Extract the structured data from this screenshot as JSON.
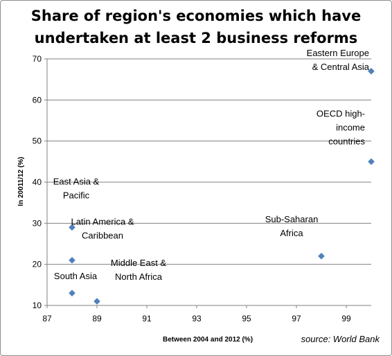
{
  "chart_data": {
    "type": "scatter",
    "title_lines": [
      "Share of region's economies which have",
      "undertaken at least 2 business reforms"
    ],
    "xlabel": "Between 2004 and 2012 (%)",
    "ylabel": "In 20011/12 (%)",
    "source": "source: World Bank",
    "xlim": [
      87,
      100
    ],
    "ylim": [
      10,
      70
    ],
    "x_ticks": [
      87,
      89,
      91,
      93,
      95,
      97,
      99
    ],
    "y_ticks": [
      10,
      20,
      30,
      40,
      50,
      60,
      70
    ],
    "grid": "horizontal",
    "marker_color": "#4f81bd",
    "points": [
      {
        "label_lines": [
          "Eastern Europe",
          "& Central Asia"
        ],
        "x": 100,
        "y": 67
      },
      {
        "label_lines": [
          "OECD high-",
          "income",
          "countries"
        ],
        "x": 100,
        "y": 45
      },
      {
        "label_lines": [
          "East Asia &",
          "Pacific"
        ],
        "x": 88,
        "y": 29
      },
      {
        "label_lines": [
          "Latin America &",
          "Caribbean"
        ],
        "x": 88,
        "y": 21
      },
      {
        "label_lines": [
          "Sub-Saharan",
          "Africa"
        ],
        "x": 98,
        "y": 22
      },
      {
        "label_lines": [
          "South Asia"
        ],
        "x": 88,
        "y": 13
      },
      {
        "label_lines": [
          "Middle East &",
          "North Africa"
        ],
        "x": 89,
        "y": 11
      }
    ]
  }
}
